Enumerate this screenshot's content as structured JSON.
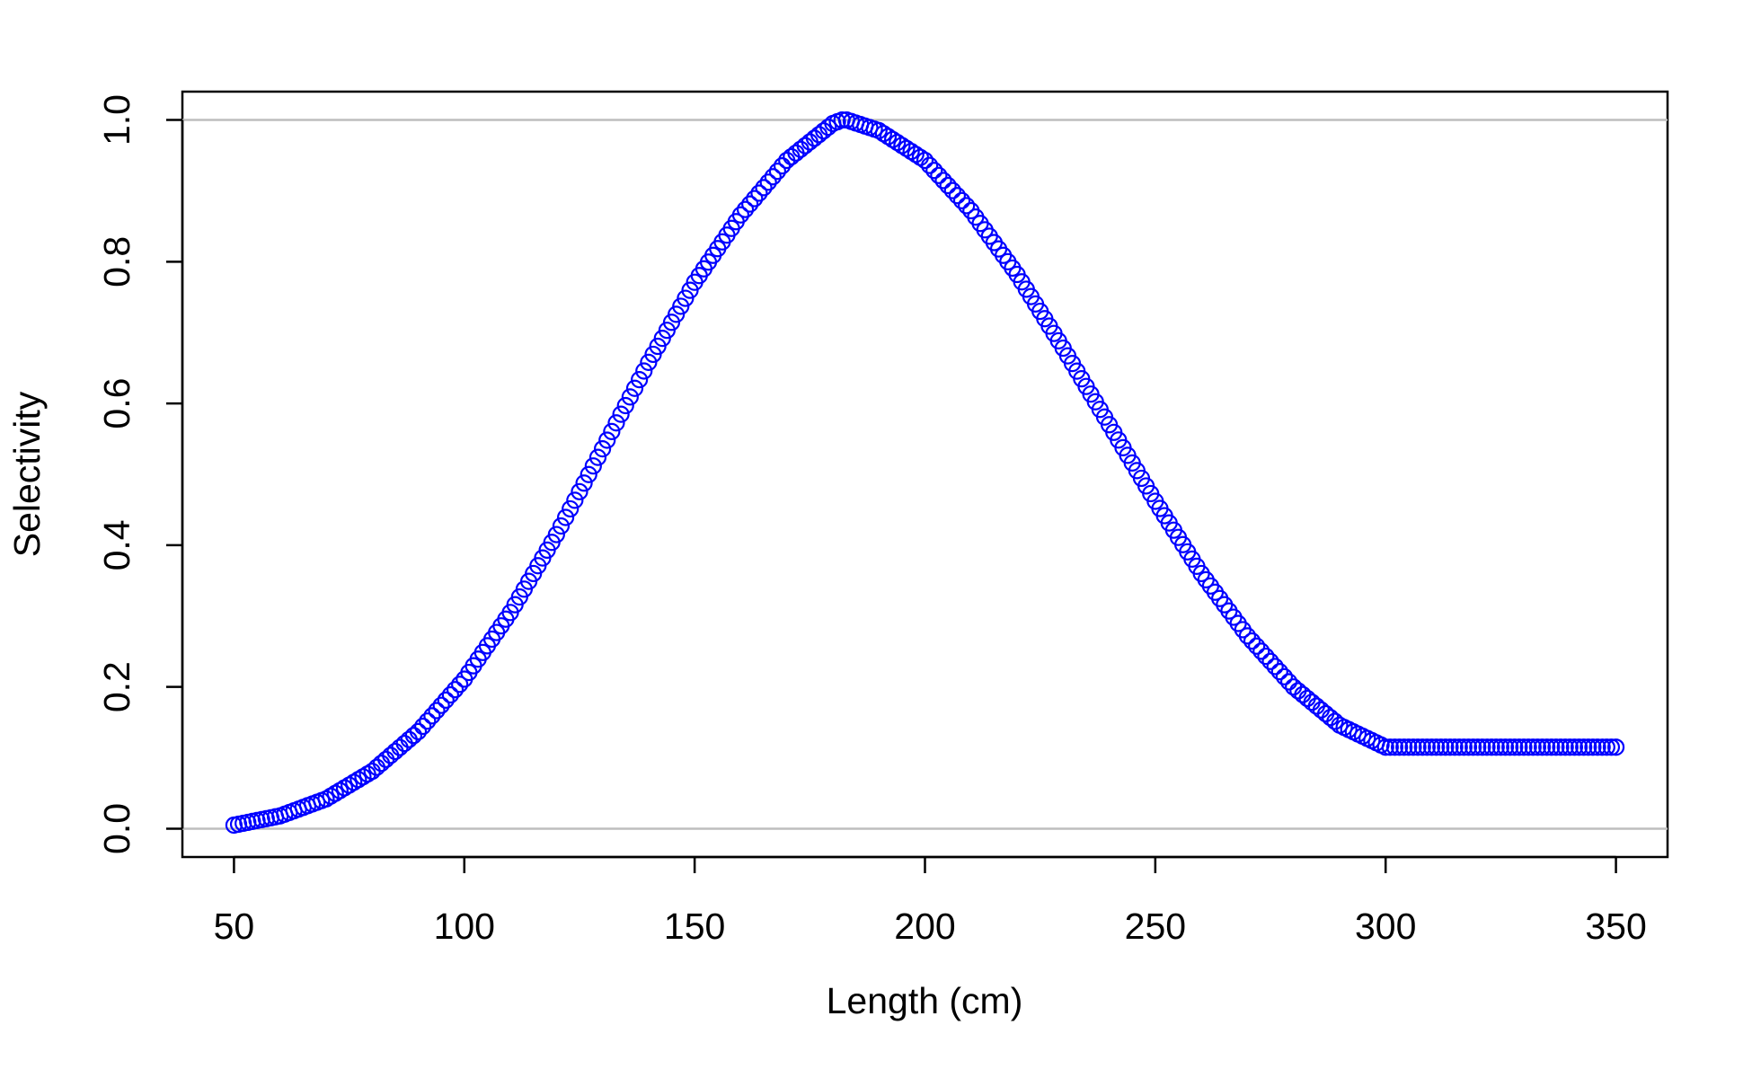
{
  "chart_data": {
    "type": "scatter",
    "title": "",
    "xlabel": "Length (cm)",
    "ylabel": "Selectivity",
    "xlim": [
      38.8,
      361.2
    ],
    "ylim": [
      -0.04,
      1.04
    ],
    "xticks": [
      50,
      100,
      150,
      200,
      250,
      300,
      350
    ],
    "yticks": [
      0.0,
      0.2,
      0.4,
      0.6,
      0.8,
      1.0
    ],
    "xtick_labels": [
      "50",
      "100",
      "150",
      "200",
      "250",
      "300",
      "350"
    ],
    "ytick_labels": [
      "0.0",
      "0.2",
      "0.4",
      "0.6",
      "0.8",
      "1.0"
    ],
    "reference_lines": [
      0,
      1
    ],
    "reference_line_color": "#bebebe",
    "marker": "open-circle",
    "point_color": "#0000ff",
    "grid": false,
    "legend": "none",
    "series": [
      {
        "x": [
          50,
          60,
          70,
          80,
          90,
          100,
          110,
          120,
          130,
          140,
          150,
          160,
          170,
          180,
          182,
          183,
          190,
          200,
          210,
          220,
          230,
          240,
          250,
          260,
          270,
          280,
          290,
          300,
          310,
          320,
          330,
          340,
          350
        ],
        "y": [
          0.005,
          0.018,
          0.042,
          0.081,
          0.137,
          0.211,
          0.305,
          0.415,
          0.536,
          0.658,
          0.771,
          0.866,
          0.943,
          0.995,
          1.0,
          1.0,
          0.985,
          0.943,
          0.872,
          0.782,
          0.678,
          0.57,
          0.462,
          0.36,
          0.272,
          0.2,
          0.146,
          0.115,
          0.115,
          0.115,
          0.115,
          0.115,
          0.115
        ]
      }
    ]
  }
}
